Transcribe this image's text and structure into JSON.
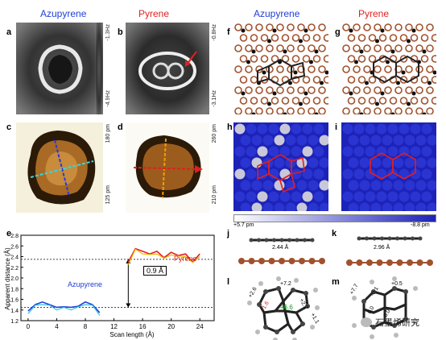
{
  "headers": {
    "left_azupyrene": "Azupyrene",
    "left_pyrene": "Pyrene",
    "right_azupyrene": "Azupyrene",
    "right_pyrene": "Pyrene"
  },
  "panel_labels": [
    "a",
    "b",
    "c",
    "d",
    "e",
    "f",
    "g",
    "h",
    "i",
    "j",
    "k",
    "l",
    "m"
  ],
  "colorbars": {
    "a_top": "-1.3Hz",
    "a_bottom": "-4.9Hz",
    "b_top": "-0.8Hz",
    "b_bottom": "-3.1Hz",
    "c_top": "180 pm",
    "c_bottom": "125 pm",
    "d_top": "260 pm",
    "d_bottom": "210 pm",
    "hi_left": "+5.7 pm",
    "hi_right": "-8.8 pm"
  },
  "panel_e": {
    "ylabel": "Apparent distance (Å)",
    "xlabel": "Scan length (Å)",
    "gap_label": "0.9 Å",
    "series_azupyrene": "Azupyrene",
    "series_pyrene": "Pyrene"
  },
  "panel_j": {
    "distance": "2.44 Å"
  },
  "panel_k": {
    "distance": "2.96 Å"
  },
  "panel_l": {
    "values": [
      "+2.6",
      "+7.2",
      "+2.2",
      "-1.6",
      "+6.6",
      "+1.1"
    ]
  },
  "panel_m": {
    "values": [
      "+7.7",
      "-0.1",
      "+0.5",
      "0.0",
      "0.0"
    ]
  },
  "watermark": "石墨烯研究",
  "chart_data": {
    "type": "line",
    "title": "",
    "xlabel": "Scan length (Å)",
    "ylabel": "Apparent distance (Å)",
    "xlim": [
      -1,
      26
    ],
    "ylim": [
      1.2,
      2.8
    ],
    "xticks": [
      0,
      4,
      8,
      12,
      16,
      20,
      24
    ],
    "yticks": [
      1.2,
      1.4,
      1.6,
      1.8,
      2.0,
      2.2,
      2.4,
      2.6,
      2.8
    ],
    "reference_lines": [
      2.35,
      1.45
    ],
    "series": [
      {
        "name": "Azupyrene",
        "color": "#1f3fd6",
        "x": [
          0,
          1,
          2,
          3,
          4,
          5,
          6,
          7,
          8,
          9,
          10
        ],
        "y": [
          1.38,
          1.5,
          1.55,
          1.5,
          1.45,
          1.46,
          1.45,
          1.47,
          1.55,
          1.5,
          1.35
        ]
      },
      {
        "name": "Pyrene",
        "color": "#e02020",
        "x": [
          14,
          15,
          16,
          17,
          18,
          19,
          20,
          21,
          22,
          23,
          24
        ],
        "y": [
          2.3,
          2.55,
          2.5,
          2.45,
          2.5,
          2.38,
          2.48,
          2.42,
          2.45,
          2.3,
          2.45
        ]
      }
    ]
  }
}
